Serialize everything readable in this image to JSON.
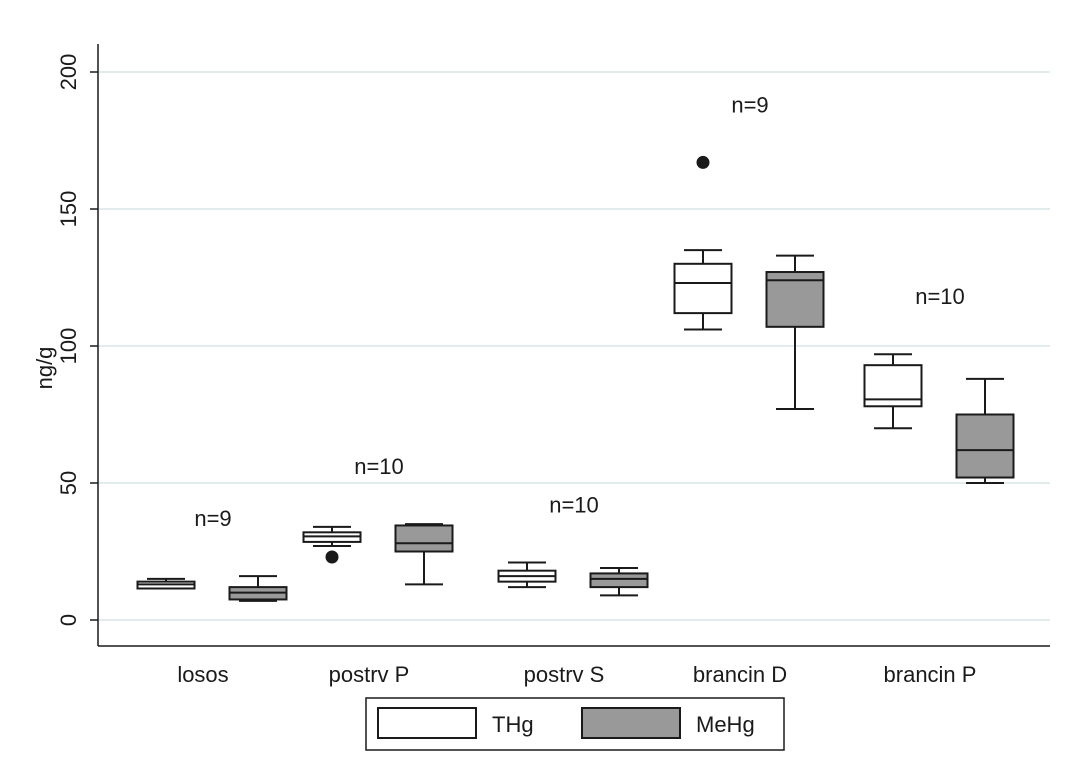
{
  "chart_data": {
    "type": "box",
    "ylabel": "ng/g",
    "ylim": [
      -10,
      210
    ],
    "yticks": [
      0,
      50,
      100,
      150,
      200
    ],
    "grid": true,
    "categories": [
      "losos",
      "postrv P",
      "postrv S",
      "brancin D",
      "brancin P"
    ],
    "n_labels": [
      "n=9",
      "n=10",
      "n=10",
      "n=9",
      "n=10"
    ],
    "series": [
      {
        "name": "THg",
        "fill": "#ffffff",
        "boxes": [
          {
            "min": 11.5,
            "q1": 11.5,
            "median": 13,
            "q3": 14,
            "max": 15,
            "outliers": []
          },
          {
            "min": 27,
            "q1": 28.5,
            "median": 30.5,
            "q3": 32,
            "max": 34,
            "outliers": [
              23
            ]
          },
          {
            "min": 12,
            "q1": 14,
            "median": 16,
            "q3": 18,
            "max": 21,
            "outliers": []
          },
          {
            "min": 106,
            "q1": 112,
            "median": 123,
            "q3": 130,
            "max": 135,
            "outliers": [
              167
            ]
          },
          {
            "min": 70,
            "q1": 78,
            "median": 80.5,
            "q3": 93,
            "max": 97,
            "outliers": []
          }
        ]
      },
      {
        "name": "MeHg",
        "fill": "#999999",
        "boxes": [
          {
            "min": 7,
            "q1": 7.5,
            "median": 10,
            "q3": 12,
            "max": 16,
            "outliers": []
          },
          {
            "min": 13,
            "q1": 25,
            "median": 28,
            "q3": 34.5,
            "max": 35,
            "outliers": []
          },
          {
            "min": 9,
            "q1": 12,
            "median": 15,
            "q3": 17,
            "max": 19,
            "outliers": []
          },
          {
            "min": 77,
            "q1": 107,
            "median": 124,
            "q3": 127,
            "max": 133,
            "outliers": []
          },
          {
            "min": 50,
            "q1": 52,
            "median": 62,
            "q3": 75,
            "max": 88,
            "outliers": []
          }
        ]
      }
    ],
    "legend_position": "bottom-center"
  }
}
